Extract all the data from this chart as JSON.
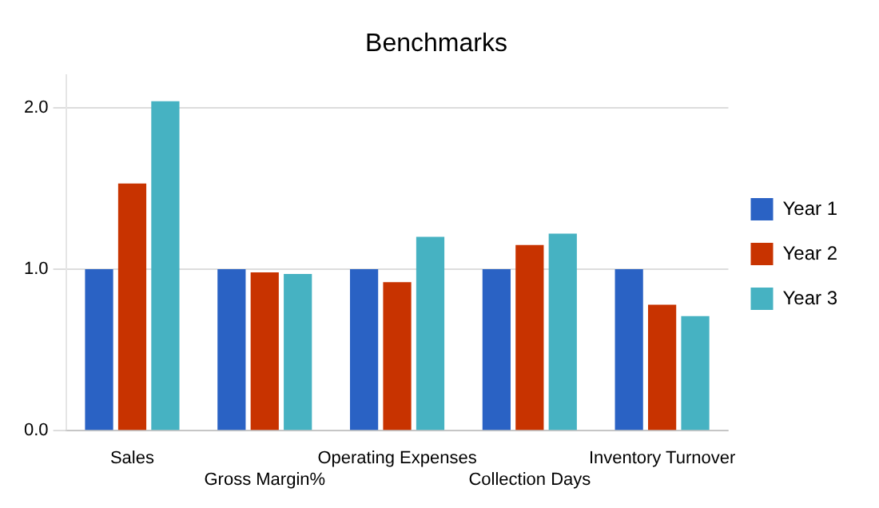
{
  "chart_data": {
    "type": "bar",
    "title": "Benchmarks",
    "categories": [
      "Sales",
      "Gross Margin%",
      "Operating Expenses",
      "Collection Days",
      "Inventory Turnover"
    ],
    "series": [
      {
        "name": "Year 1",
        "color": "#2a62c4",
        "values": [
          1.0,
          1.0,
          1.0,
          1.0,
          1.0
        ]
      },
      {
        "name": "Year 2",
        "color": "#c83300",
        "values": [
          1.53,
          0.98,
          0.92,
          1.15,
          0.78
        ]
      },
      {
        "name": "Year 3",
        "color": "#46b2c2",
        "values": [
          2.04,
          0.97,
          1.2,
          1.22,
          0.71
        ]
      }
    ],
    "ylim": [
      0,
      2.2
    ],
    "yticks": [
      {
        "value": 0,
        "label": "0.0"
      },
      {
        "value": 1,
        "label": "1.0"
      },
      {
        "value": 2,
        "label": "2.0"
      }
    ],
    "grid": "y",
    "legend": "right"
  }
}
